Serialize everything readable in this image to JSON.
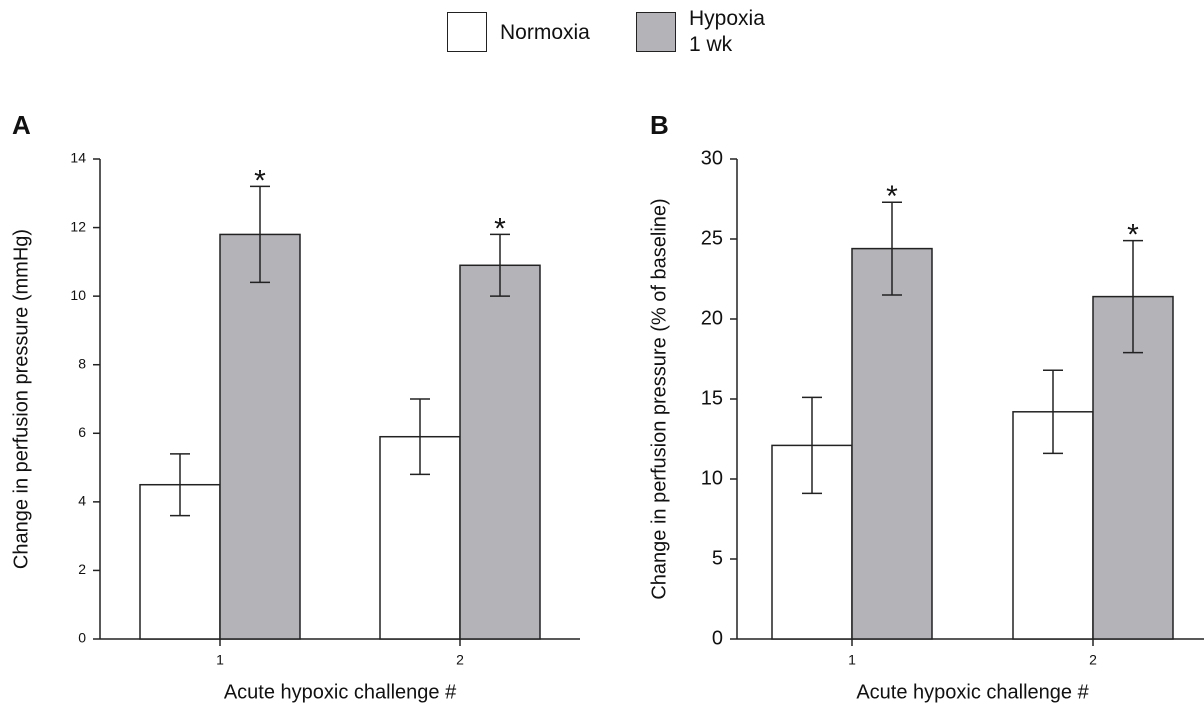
{
  "chart_data": [
    {
      "type": "bar",
      "panel": "A",
      "ylabel": "Change in perfusion pressure (mmHg)",
      "xlabel": "Acute hypoxic challenge #",
      "categories": [
        "1",
        "2"
      ],
      "series": [
        {
          "name": "Normoxia",
          "color": "#ffffff",
          "values": [
            4.5,
            5.9
          ],
          "errors": [
            0.9,
            1.1
          ]
        },
        {
          "name": "Hypoxia\n1 wk",
          "color": "#b3b3b8",
          "values": [
            11.8,
            10.9
          ],
          "errors": [
            1.4,
            0.9
          ],
          "markers": [
            "*",
            "*"
          ]
        }
      ],
      "ylim": [
        0,
        14
      ],
      "yticks": [
        0,
        2,
        4,
        6,
        8,
        10,
        12,
        14
      ]
    },
    {
      "type": "bar",
      "panel": "B",
      "ylabel": "Change in perfusion pressure (% of baseline)",
      "xlabel": "Acute hypoxic challenge #",
      "categories": [
        "1",
        "2"
      ],
      "series": [
        {
          "color": "#ffffff",
          "values": [
            12.1,
            14.2
          ],
          "errors": [
            3.0,
            2.6
          ]
        },
        {
          "color": "#b3b3b8",
          "values": [
            24.4,
            21.4
          ],
          "errors": [
            2.9,
            3.5
          ],
          "markers": [
            "*",
            "*"
          ]
        }
      ],
      "ylim": [
        0,
        30
      ],
      "yticks": [
        0,
        5,
        10,
        15,
        20,
        25,
        30
      ]
    }
  ]
}
